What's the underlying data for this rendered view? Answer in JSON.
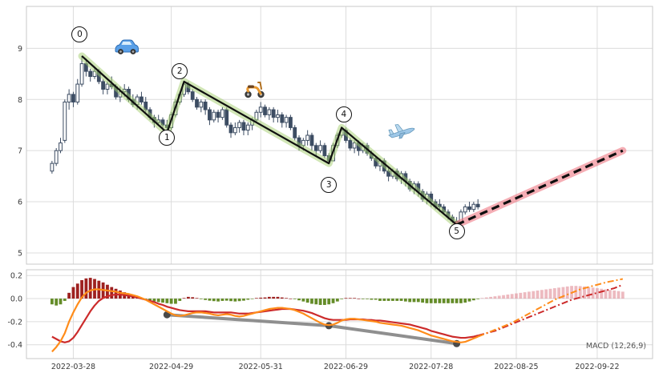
{
  "chart_data": {
    "type": "candlestick",
    "title": "",
    "x_ticks": [
      {
        "i": 5,
        "label": "2022-03-28"
      },
      {
        "i": 28,
        "label": "2022-04-29"
      },
      {
        "i": 49,
        "label": "2022-05-31"
      },
      {
        "i": 69,
        "label": "2022-06-29"
      },
      {
        "i": 89,
        "label": "2022-07-28"
      },
      {
        "i": 109,
        "label": "2022-08-25"
      },
      {
        "i": 128,
        "label": "2022-09-22"
      }
    ],
    "price": {
      "ylim": [
        4.78,
        9.82
      ],
      "y_ticks": [
        {
          "v": 9,
          "label": "9"
        },
        {
          "v": 8,
          "label": "8"
        },
        {
          "v": 7,
          "label": "7"
        },
        {
          "v": 6,
          "label": "6"
        },
        {
          "v": 5,
          "label": "5"
        }
      ],
      "candles": [
        [
          6.6,
          6.8,
          6.55,
          6.75
        ],
        [
          6.75,
          7.05,
          6.7,
          7.0
        ],
        [
          7.0,
          7.25,
          6.95,
          7.15
        ],
        [
          7.2,
          8.0,
          7.15,
          7.95
        ],
        [
          7.95,
          8.2,
          7.8,
          8.1
        ],
        [
          8.1,
          8.15,
          7.85,
          7.95
        ],
        [
          7.95,
          8.4,
          7.9,
          8.3
        ],
        [
          8.3,
          8.85,
          8.25,
          8.7
        ],
        [
          8.7,
          8.8,
          8.45,
          8.55
        ],
        [
          8.55,
          8.6,
          8.35,
          8.45
        ],
        [
          8.45,
          8.65,
          8.4,
          8.55
        ],
        [
          8.55,
          8.6,
          8.3,
          8.35
        ],
        [
          8.35,
          8.4,
          8.1,
          8.2
        ],
        [
          8.2,
          8.35,
          8.1,
          8.3
        ],
        [
          8.3,
          8.45,
          8.2,
          8.25
        ],
        [
          8.25,
          8.3,
          8.0,
          8.05
        ],
        [
          8.05,
          8.25,
          7.95,
          8.15
        ],
        [
          8.15,
          8.3,
          8.05,
          8.2
        ],
        [
          8.2,
          8.25,
          7.95,
          8.0
        ],
        [
          8.0,
          8.1,
          7.85,
          7.9
        ],
        [
          7.9,
          8.1,
          7.8,
          8.05
        ],
        [
          8.05,
          8.15,
          7.9,
          7.95
        ],
        [
          7.95,
          8.05,
          7.75,
          7.8
        ],
        [
          7.8,
          7.85,
          7.6,
          7.65
        ],
        [
          7.65,
          7.7,
          7.45,
          7.55
        ],
        [
          7.55,
          7.7,
          7.5,
          7.6
        ],
        [
          7.6,
          7.65,
          7.4,
          7.5
        ],
        [
          7.5,
          7.6,
          7.35,
          7.45
        ],
        [
          7.45,
          7.75,
          7.4,
          7.7
        ],
        [
          7.7,
          8.0,
          7.65,
          7.95
        ],
        [
          7.95,
          8.15,
          7.9,
          8.1
        ],
        [
          8.1,
          8.35,
          8.05,
          8.3
        ],
        [
          8.3,
          8.35,
          8.1,
          8.15
        ],
        [
          8.15,
          8.2,
          7.95,
          8.0
        ],
        [
          8.0,
          8.05,
          7.8,
          7.85
        ],
        [
          7.85,
          8.0,
          7.75,
          7.95
        ],
        [
          7.95,
          8.0,
          7.7,
          7.8
        ],
        [
          7.8,
          7.85,
          7.5,
          7.6
        ],
        [
          7.6,
          7.8,
          7.55,
          7.75
        ],
        [
          7.75,
          7.8,
          7.55,
          7.65
        ],
        [
          7.65,
          7.85,
          7.6,
          7.8
        ],
        [
          7.8,
          7.85,
          7.45,
          7.5
        ],
        [
          7.5,
          7.55,
          7.25,
          7.35
        ],
        [
          7.35,
          7.55,
          7.3,
          7.45
        ],
        [
          7.45,
          7.6,
          7.35,
          7.55
        ],
        [
          7.55,
          7.6,
          7.3,
          7.4
        ],
        [
          7.4,
          7.55,
          7.3,
          7.5
        ],
        [
          7.5,
          7.65,
          7.4,
          7.6
        ],
        [
          7.6,
          7.8,
          7.55,
          7.75
        ],
        [
          7.75,
          7.95,
          7.65,
          7.85
        ],
        [
          7.85,
          7.9,
          7.65,
          7.7
        ],
        [
          7.7,
          7.85,
          7.6,
          7.8
        ],
        [
          7.8,
          7.85,
          7.55,
          7.65
        ],
        [
          7.65,
          7.8,
          7.55,
          7.7
        ],
        [
          7.7,
          7.75,
          7.45,
          7.55
        ],
        [
          7.55,
          7.7,
          7.45,
          7.65
        ],
        [
          7.65,
          7.7,
          7.4,
          7.45
        ],
        [
          7.45,
          7.5,
          7.2,
          7.25
        ],
        [
          7.25,
          7.3,
          7.0,
          7.1
        ],
        [
          7.1,
          7.25,
          7.0,
          7.2
        ],
        [
          7.2,
          7.4,
          7.1,
          7.3
        ],
        [
          7.3,
          7.35,
          7.0,
          7.1
        ],
        [
          7.1,
          7.15,
          6.9,
          7.0
        ],
        [
          7.0,
          7.2,
          6.95,
          7.1
        ],
        [
          7.1,
          7.15,
          6.85,
          6.9
        ],
        [
          6.9,
          6.95,
          6.75,
          6.8
        ],
        [
          6.8,
          7.15,
          6.8,
          7.1
        ],
        [
          7.1,
          7.35,
          7.05,
          7.3
        ],
        [
          7.3,
          7.45,
          7.25,
          7.4
        ],
        [
          7.4,
          7.45,
          7.15,
          7.2
        ],
        [
          7.2,
          7.25,
          7.0,
          7.05
        ],
        [
          7.05,
          7.2,
          6.95,
          7.15
        ],
        [
          7.15,
          7.2,
          6.9,
          7.0
        ],
        [
          7.0,
          7.15,
          6.95,
          7.1
        ],
        [
          7.1,
          7.15,
          6.9,
          6.95
        ],
        [
          6.95,
          7.0,
          6.8,
          6.85
        ],
        [
          6.85,
          6.9,
          6.65,
          6.7
        ],
        [
          6.7,
          6.85,
          6.6,
          6.8
        ],
        [
          6.8,
          6.85,
          6.55,
          6.6
        ],
        [
          6.6,
          6.65,
          6.4,
          6.5
        ],
        [
          6.5,
          6.65,
          6.45,
          6.6
        ],
        [
          6.6,
          6.65,
          6.4,
          6.45
        ],
        [
          6.45,
          6.6,
          6.35,
          6.55
        ],
        [
          6.55,
          6.6,
          6.3,
          6.4
        ],
        [
          6.4,
          6.45,
          6.2,
          6.25
        ],
        [
          6.25,
          6.4,
          6.15,
          6.35
        ],
        [
          6.35,
          6.4,
          6.1,
          6.2
        ],
        [
          6.2,
          6.25,
          6.0,
          6.05
        ],
        [
          6.05,
          6.2,
          5.95,
          6.15
        ],
        [
          6.15,
          6.2,
          5.9,
          6.0
        ],
        [
          6.0,
          6.05,
          5.85,
          5.9
        ],
        [
          5.95,
          6.05,
          5.8,
          5.9
        ],
        [
          5.9,
          5.95,
          5.75,
          5.8
        ],
        [
          5.8,
          5.85,
          5.65,
          5.7
        ],
        [
          5.7,
          5.75,
          5.58,
          5.62
        ],
        [
          5.62,
          5.7,
          5.55,
          5.6
        ],
        [
          5.6,
          5.85,
          5.58,
          5.8
        ],
        [
          5.8,
          5.95,
          5.75,
          5.9
        ],
        [
          5.9,
          6.0,
          5.8,
          5.85
        ],
        [
          5.85,
          6.0,
          5.8,
          5.95
        ],
        [
          5.95,
          6.05,
          5.85,
          5.9
        ]
      ]
    },
    "waves": {
      "labels": [
        "0",
        "1",
        "2",
        "3",
        "4",
        "5"
      ],
      "points": [
        [
          7,
          8.85
        ],
        [
          27,
          7.35
        ],
        [
          31,
          8.35
        ],
        [
          65,
          6.75
        ],
        [
          68,
          7.45
        ],
        [
          95,
          5.55
        ]
      ],
      "label_positions": [
        [
          6.5,
          9.27
        ],
        [
          27,
          7.25
        ],
        [
          30,
          8.55
        ],
        [
          65,
          6.33
        ],
        [
          68.5,
          7.7
        ],
        [
          95,
          5.42
        ]
      ],
      "projection": [
        [
          95,
          5.55
        ],
        [
          134,
          7.0
        ]
      ]
    },
    "annotations": [
      {
        "name": "car",
        "emoji": "🚙",
        "x": 17.5,
        "y": 9.0
      },
      {
        "name": "scooter",
        "emoji": "🛵",
        "x": 47.5,
        "y": 8.18
      },
      {
        "name": "airplane",
        "emoji": "✈️",
        "x": 82,
        "y": 7.37
      }
    ],
    "macd": {
      "label": "MACD (12,26,9)",
      "ylim": [
        -0.52,
        0.25
      ],
      "y_ticks": [
        {
          "v": 0.2,
          "label": "0.2"
        },
        {
          "v": 0.0,
          "label": "0.0"
        },
        {
          "v": -0.2,
          "label": "-0.2"
        },
        {
          "v": -0.4,
          "label": "-0.4"
        }
      ],
      "macd_line": [
        -0.46,
        -0.42,
        -0.37,
        -0.3,
        -0.2,
        -0.12,
        -0.05,
        0.01,
        0.05,
        0.07,
        0.08,
        0.08,
        0.075,
        0.07,
        0.065,
        0.06,
        0.05,
        0.045,
        0.04,
        0.03,
        0.02,
        0.005,
        -0.01,
        -0.03,
        -0.05,
        -0.07,
        -0.09,
        -0.11,
        -0.13,
        -0.145,
        -0.15,
        -0.145,
        -0.135,
        -0.125,
        -0.12,
        -0.12,
        -0.125,
        -0.13,
        -0.14,
        -0.145,
        -0.14,
        -0.135,
        -0.14,
        -0.15,
        -0.155,
        -0.15,
        -0.14,
        -0.13,
        -0.12,
        -0.11,
        -0.1,
        -0.09,
        -0.085,
        -0.08,
        -0.08,
        -0.085,
        -0.09,
        -0.1,
        -0.115,
        -0.13,
        -0.15,
        -0.17,
        -0.19,
        -0.21,
        -0.225,
        -0.23,
        -0.225,
        -0.21,
        -0.19,
        -0.18,
        -0.175,
        -0.175,
        -0.18,
        -0.185,
        -0.19,
        -0.195,
        -0.2,
        -0.21,
        -0.215,
        -0.22,
        -0.225,
        -0.23,
        -0.235,
        -0.245,
        -0.255,
        -0.265,
        -0.275,
        -0.29,
        -0.305,
        -0.32,
        -0.33,
        -0.34,
        -0.35,
        -0.36,
        -0.37,
        -0.375,
        -0.38,
        -0.375,
        -0.36,
        -0.345,
        -0.33
      ],
      "signal_line": [
        -0.33,
        -0.35,
        -0.37,
        -0.38,
        -0.37,
        -0.34,
        -0.29,
        -0.23,
        -0.17,
        -0.11,
        -0.06,
        -0.02,
        0.005,
        0.02,
        0.03,
        0.035,
        0.035,
        0.03,
        0.025,
        0.02,
        0.01,
        0.0,
        -0.01,
        -0.02,
        -0.03,
        -0.045,
        -0.055,
        -0.07,
        -0.08,
        -0.09,
        -0.1,
        -0.105,
        -0.11,
        -0.11,
        -0.11,
        -0.11,
        -0.11,
        -0.115,
        -0.12,
        -0.12,
        -0.12,
        -0.12,
        -0.12,
        -0.125,
        -0.13,
        -0.13,
        -0.13,
        -0.125,
        -0.12,
        -0.115,
        -0.11,
        -0.105,
        -0.1,
        -0.095,
        -0.09,
        -0.09,
        -0.09,
        -0.095,
        -0.1,
        -0.105,
        -0.115,
        -0.125,
        -0.14,
        -0.155,
        -0.17,
        -0.18,
        -0.185,
        -0.185,
        -0.185,
        -0.185,
        -0.18,
        -0.18,
        -0.18,
        -0.18,
        -0.185,
        -0.185,
        -0.19,
        -0.19,
        -0.195,
        -0.2,
        -0.205,
        -0.21,
        -0.215,
        -0.22,
        -0.225,
        -0.235,
        -0.245,
        -0.255,
        -0.265,
        -0.28,
        -0.29,
        -0.3,
        -0.31,
        -0.32,
        -0.33,
        -0.335,
        -0.34,
        -0.34,
        -0.335,
        -0.33,
        -0.32
      ],
      "histogram": [
        -0.05,
        -0.06,
        -0.05,
        -0.02,
        0.05,
        0.1,
        0.13,
        0.16,
        0.175,
        0.18,
        0.17,
        0.155,
        0.14,
        0.12,
        0.1,
        0.085,
        0.07,
        0.055,
        0.04,
        0.03,
        0.02,
        0.005,
        -0.005,
        -0.015,
        -0.025,
        -0.03,
        -0.035,
        -0.04,
        -0.045,
        -0.045,
        -0.02,
        0.005,
        0.015,
        0.012,
        0.005,
        -0.005,
        -0.012,
        -0.018,
        -0.022,
        -0.025,
        -0.02,
        -0.018,
        -0.022,
        -0.025,
        -0.022,
        -0.018,
        -0.01,
        -0.002,
        0.005,
        0.008,
        0.01,
        0.015,
        0.015,
        0.015,
        0.01,
        0.005,
        0.0,
        -0.005,
        -0.015,
        -0.025,
        -0.035,
        -0.045,
        -0.05,
        -0.055,
        -0.055,
        -0.05,
        -0.04,
        -0.025,
        -0.005,
        0.005,
        0.005,
        0.005,
        0.0,
        -0.005,
        -0.005,
        -0.01,
        -0.01,
        -0.02,
        -0.02,
        -0.02,
        -0.02,
        -0.02,
        -0.02,
        -0.025,
        -0.03,
        -0.03,
        -0.03,
        -0.035,
        -0.04,
        -0.04,
        -0.04,
        -0.04,
        -0.04,
        -0.04,
        -0.04,
        -0.04,
        -0.04,
        -0.035,
        -0.025,
        -0.015,
        -0.005
      ],
      "macd_projection": [
        -0.33,
        -0.315,
        -0.3,
        -0.285,
        -0.27,
        -0.255,
        -0.24,
        -0.225,
        -0.21,
        -0.19,
        -0.17,
        -0.15,
        -0.13,
        -0.11,
        -0.09,
        -0.07,
        -0.05,
        -0.03,
        -0.01,
        0.005,
        0.02,
        0.035,
        0.05,
        0.065,
        0.08,
        0.09,
        0.1,
        0.11,
        0.12,
        0.13,
        0.14,
        0.148,
        0.155,
        0.163,
        0.17
      ],
      "signal_projection": [
        -0.32,
        -0.31,
        -0.3,
        -0.29,
        -0.28,
        -0.265,
        -0.25,
        -0.235,
        -0.22,
        -0.205,
        -0.19,
        -0.175,
        -0.16,
        -0.145,
        -0.13,
        -0.115,
        -0.1,
        -0.085,
        -0.07,
        -0.055,
        -0.04,
        -0.025,
        -0.01,
        0.0,
        0.01,
        0.02,
        0.03,
        0.04,
        0.05,
        0.06,
        0.07,
        0.08,
        0.09,
        0.105,
        0.12
      ],
      "histogram_projection": [
        0.005,
        0.01,
        0.015,
        0.02,
        0.025,
        0.03,
        0.035,
        0.04,
        0.045,
        0.05,
        0.055,
        0.06,
        0.065,
        0.07,
        0.075,
        0.08,
        0.085,
        0.09,
        0.095,
        0.1,
        0.105,
        0.11,
        0.11,
        0.108,
        0.105,
        0.1,
        0.095,
        0.09,
        0.085,
        0.08,
        0.075,
        0.07,
        0.065,
        0.06
      ],
      "divergence": [
        [
          27,
          -0.14
        ],
        [
          65,
          -0.235
        ],
        [
          95,
          -0.39
        ]
      ]
    },
    "colors": {
      "grid": "#dcdcdc",
      "border": "#c9c9c9",
      "tick_text": "#3a3a3a",
      "candle_up": "#ffffff",
      "candle_down": "#3d4d63",
      "wave_line": "#0f0f0f",
      "band_decline": "rgba(164,205,109,0.5)",
      "band_projection": "rgba(236,108,120,0.55)",
      "hist_pos": "#9e2120",
      "hist_neg": "#648c28",
      "hist_projection": "rgba(222,130,140,0.55)",
      "macd": "#ff8c1a",
      "signal": "#cc2b2b",
      "divergence": "#8f8f8f",
      "divergence_dot": "#4a4a4a"
    }
  }
}
